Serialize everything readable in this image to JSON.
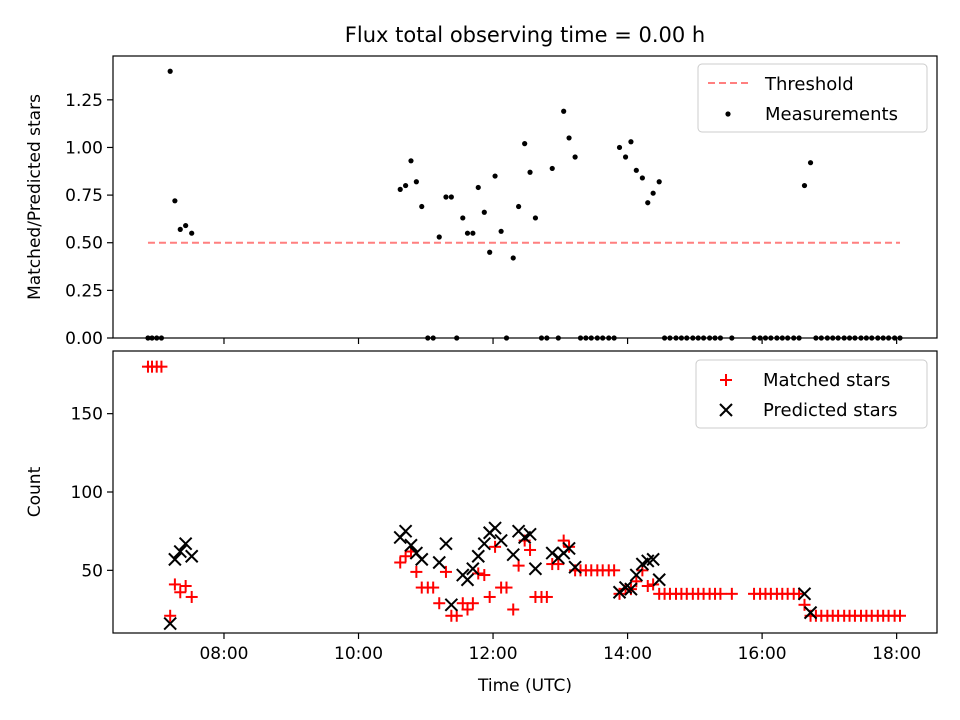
{
  "title": "Flux total observing time = 0.00 h",
  "chart_data": [
    {
      "type": "scatter",
      "ylabel": "Matched/Predicted stars",
      "ylim": [
        0,
        1.48
      ],
      "yticks": [
        "0.00",
        "0.25",
        "0.50",
        "0.75",
        "1.00",
        "1.25"
      ],
      "threshold": 0.5,
      "threshold_range": [
        6.87,
        18.05
      ],
      "legend": {
        "placement": "top-right",
        "threshold_label": "Threshold",
        "measurements_label": "Measurements"
      },
      "colors": {
        "threshold": "#ff7f7f",
        "measurements": "#000000"
      },
      "measurements": [
        [
          6.87,
          0
        ],
        [
          6.93,
          0
        ],
        [
          7.0,
          0
        ],
        [
          7.07,
          0
        ],
        [
          7.2,
          1.4
        ],
        [
          7.27,
          0.72
        ],
        [
          7.35,
          0.57
        ],
        [
          7.43,
          0.59
        ],
        [
          7.52,
          0.55
        ],
        [
          10.62,
          0.78
        ],
        [
          10.7,
          0.8
        ],
        [
          10.78,
          0.93
        ],
        [
          10.86,
          0.82
        ],
        [
          10.94,
          0.69
        ],
        [
          11.03,
          0
        ],
        [
          11.11,
          0
        ],
        [
          11.2,
          0.53
        ],
        [
          11.3,
          0.74
        ],
        [
          11.38,
          0.74
        ],
        [
          11.46,
          0
        ],
        [
          11.55,
          0.63
        ],
        [
          11.62,
          0.55
        ],
        [
          11.7,
          0.55
        ],
        [
          11.78,
          0.79
        ],
        [
          11.87,
          0.66
        ],
        [
          11.95,
          0.45
        ],
        [
          12.03,
          0.85
        ],
        [
          12.12,
          0.56
        ],
        [
          12.2,
          0
        ],
        [
          12.3,
          0.42
        ],
        [
          12.38,
          0.69
        ],
        [
          12.47,
          1.02
        ],
        [
          12.55,
          0.87
        ],
        [
          12.63,
          0.63
        ],
        [
          12.72,
          0
        ],
        [
          12.8,
          0
        ],
        [
          12.88,
          0.89
        ],
        [
          12.97,
          0
        ],
        [
          13.05,
          1.19
        ],
        [
          13.13,
          1.05
        ],
        [
          13.22,
          0.95
        ],
        [
          13.3,
          0
        ],
        [
          13.38,
          0
        ],
        [
          13.46,
          0
        ],
        [
          13.55,
          0
        ],
        [
          13.63,
          0
        ],
        [
          13.72,
          0
        ],
        [
          13.8,
          0
        ],
        [
          13.88,
          1.0
        ],
        [
          13.97,
          0.95
        ],
        [
          14.05,
          1.03
        ],
        [
          14.13,
          0.88
        ],
        [
          14.22,
          0.84
        ],
        [
          14.3,
          0.71
        ],
        [
          14.38,
          0.76
        ],
        [
          14.47,
          0.82
        ],
        [
          14.55,
          0
        ],
        [
          14.63,
          0
        ],
        [
          14.72,
          0
        ],
        [
          14.8,
          0
        ],
        [
          14.88,
          0
        ],
        [
          14.97,
          0
        ],
        [
          15.05,
          0
        ],
        [
          15.13,
          0
        ],
        [
          15.22,
          0
        ],
        [
          15.3,
          0
        ],
        [
          15.38,
          0
        ],
        [
          15.55,
          0
        ],
        [
          15.88,
          0
        ],
        [
          15.97,
          0
        ],
        [
          16.05,
          0
        ],
        [
          16.13,
          0
        ],
        [
          16.22,
          0
        ],
        [
          16.3,
          0
        ],
        [
          16.38,
          0
        ],
        [
          16.47,
          0
        ],
        [
          16.55,
          0
        ],
        [
          16.63,
          0.8
        ],
        [
          16.72,
          0.92
        ],
        [
          16.8,
          0
        ],
        [
          16.88,
          0
        ],
        [
          16.97,
          0
        ],
        [
          17.05,
          0
        ],
        [
          17.13,
          0
        ],
        [
          17.22,
          0
        ],
        [
          17.3,
          0
        ],
        [
          17.38,
          0
        ],
        [
          17.47,
          0
        ],
        [
          17.55,
          0
        ],
        [
          17.63,
          0
        ],
        [
          17.72,
          0
        ],
        [
          17.8,
          0
        ],
        [
          17.88,
          0
        ],
        [
          17.97,
          0
        ],
        [
          18.05,
          0
        ]
      ]
    },
    {
      "type": "scatter",
      "xlabel": "Time (UTC)",
      "ylabel": "Count",
      "xlim": [
        6.35,
        18.6
      ],
      "xticks": [
        {
          "value": 8,
          "label": "08:00"
        },
        {
          "value": 10,
          "label": "10:00"
        },
        {
          "value": 12,
          "label": "12:00"
        },
        {
          "value": 14,
          "label": "14:00"
        },
        {
          "value": 16,
          "label": "16:00"
        },
        {
          "value": 18,
          "label": "18:00"
        }
      ],
      "ylim": [
        10,
        190
      ],
      "yticks": [
        "50",
        "100",
        "150"
      ],
      "legend": {
        "placement": "top-right",
        "matched_label": "Matched stars",
        "predicted_label": "Predicted stars"
      },
      "colors": {
        "matched": "#ff0000",
        "predicted": "#000000"
      },
      "matched": [
        [
          6.87,
          180
        ],
        [
          6.93,
          180
        ],
        [
          7.0,
          180
        ],
        [
          7.07,
          180
        ],
        [
          7.2,
          21
        ],
        [
          7.27,
          41
        ],
        [
          7.35,
          36
        ],
        [
          7.43,
          40
        ],
        [
          7.52,
          33
        ],
        [
          10.62,
          55
        ],
        [
          10.7,
          59
        ],
        [
          10.78,
          62
        ],
        [
          10.86,
          49
        ],
        [
          10.94,
          39
        ],
        [
          11.03,
          39
        ],
        [
          11.11,
          39
        ],
        [
          11.2,
          29
        ],
        [
          11.3,
          49
        ],
        [
          11.38,
          21
        ],
        [
          11.46,
          21
        ],
        [
          11.55,
          29
        ],
        [
          11.62,
          25
        ],
        [
          11.7,
          29
        ],
        [
          11.78,
          48
        ],
        [
          11.87,
          47
        ],
        [
          11.95,
          33
        ],
        [
          12.03,
          65
        ],
        [
          12.12,
          39
        ],
        [
          12.2,
          39
        ],
        [
          12.3,
          25
        ],
        [
          12.38,
          53
        ],
        [
          12.47,
          69
        ],
        [
          12.55,
          63
        ],
        [
          12.63,
          33
        ],
        [
          12.72,
          33
        ],
        [
          12.8,
          33
        ],
        [
          12.88,
          54
        ],
        [
          12.97,
          54
        ],
        [
          13.05,
          69
        ],
        [
          13.13,
          65
        ],
        [
          13.22,
          50
        ],
        [
          13.3,
          50
        ],
        [
          13.38,
          50
        ],
        [
          13.46,
          50
        ],
        [
          13.55,
          50
        ],
        [
          13.63,
          50
        ],
        [
          13.72,
          50
        ],
        [
          13.8,
          50
        ],
        [
          13.88,
          35
        ],
        [
          13.97,
          38
        ],
        [
          14.05,
          38
        ],
        [
          14.13,
          43
        ],
        [
          14.22,
          50
        ],
        [
          14.3,
          40
        ],
        [
          14.38,
          41
        ],
        [
          14.47,
          35
        ],
        [
          14.55,
          35
        ],
        [
          14.63,
          35
        ],
        [
          14.72,
          35
        ],
        [
          14.8,
          35
        ],
        [
          14.88,
          35
        ],
        [
          14.97,
          35
        ],
        [
          15.05,
          35
        ],
        [
          15.13,
          35
        ],
        [
          15.22,
          35
        ],
        [
          15.3,
          35
        ],
        [
          15.38,
          35
        ],
        [
          15.55,
          35
        ],
        [
          15.88,
          35
        ],
        [
          15.97,
          35
        ],
        [
          16.05,
          35
        ],
        [
          16.13,
          35
        ],
        [
          16.22,
          35
        ],
        [
          16.3,
          35
        ],
        [
          16.38,
          35
        ],
        [
          16.47,
          35
        ],
        [
          16.55,
          35
        ],
        [
          16.63,
          28
        ],
        [
          16.72,
          21
        ],
        [
          16.8,
          21
        ],
        [
          16.88,
          21
        ],
        [
          16.97,
          21
        ],
        [
          17.05,
          21
        ],
        [
          17.13,
          21
        ],
        [
          17.22,
          21
        ],
        [
          17.3,
          21
        ],
        [
          17.38,
          21
        ],
        [
          17.47,
          21
        ],
        [
          17.55,
          21
        ],
        [
          17.63,
          21
        ],
        [
          17.72,
          21
        ],
        [
          17.8,
          21
        ],
        [
          17.88,
          21
        ],
        [
          17.97,
          21
        ],
        [
          18.05,
          21
        ]
      ],
      "predicted": [
        [
          7.2,
          16
        ],
        [
          7.27,
          57
        ],
        [
          7.35,
          62
        ],
        [
          7.43,
          67
        ],
        [
          7.52,
          59
        ],
        [
          10.62,
          71
        ],
        [
          10.7,
          75
        ],
        [
          10.78,
          66
        ],
        [
          10.86,
          61
        ],
        [
          10.94,
          57
        ],
        [
          11.2,
          55
        ],
        [
          11.3,
          67
        ],
        [
          11.38,
          28
        ],
        [
          11.55,
          47
        ],
        [
          11.62,
          44
        ],
        [
          11.7,
          51
        ],
        [
          11.78,
          59
        ],
        [
          11.87,
          67
        ],
        [
          11.95,
          74
        ],
        [
          12.03,
          77
        ],
        [
          12.12,
          69
        ],
        [
          12.3,
          60
        ],
        [
          12.38,
          75
        ],
        [
          12.47,
          71
        ],
        [
          12.55,
          73
        ],
        [
          12.63,
          51
        ],
        [
          12.88,
          61
        ],
        [
          12.97,
          58
        ],
        [
          13.05,
          61
        ],
        [
          13.13,
          64
        ],
        [
          13.22,
          52
        ],
        [
          13.88,
          36
        ],
        [
          13.97,
          39
        ],
        [
          14.05,
          38
        ],
        [
          14.13,
          47
        ],
        [
          14.22,
          54
        ],
        [
          14.3,
          56
        ],
        [
          14.38,
          57
        ],
        [
          14.47,
          44
        ],
        [
          16.63,
          35
        ],
        [
          16.72,
          23
        ]
      ]
    }
  ]
}
